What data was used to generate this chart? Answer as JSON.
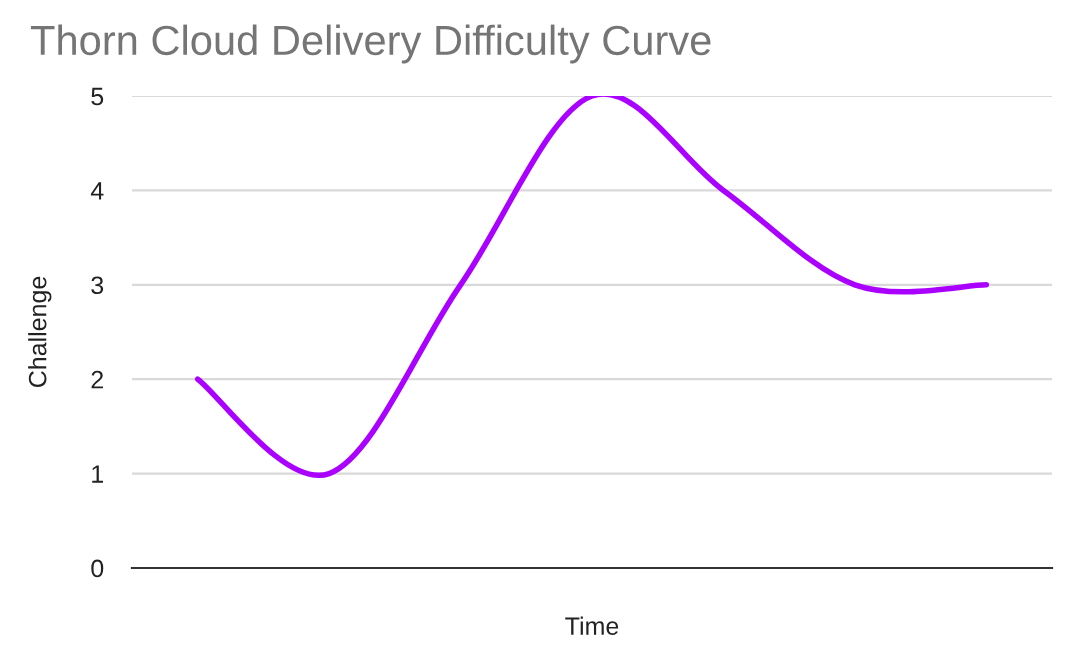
{
  "chart_data": {
    "type": "line",
    "title": "Thorn Cloud Delivery Difficulty Curve",
    "xlabel": "Time",
    "ylabel": "Challenge",
    "categories": [
      null,
      null,
      null,
      null,
      null,
      null,
      null
    ],
    "series": [
      {
        "color": "#aa00ff",
        "values": [
          2,
          1,
          3,
          5,
          4,
          3,
          3
        ]
      }
    ],
    "ylim": [
      0,
      5
    ],
    "yticks": [
      0,
      1,
      2,
      3,
      4,
      5
    ],
    "grid": "y",
    "marker": "none",
    "line_style": "solid"
  }
}
